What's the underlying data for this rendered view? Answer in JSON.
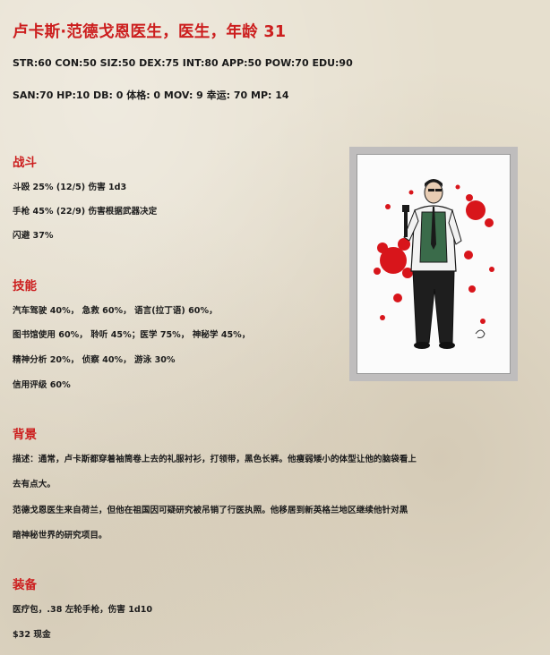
{
  "title": "卢卡斯·范德戈恩医生，医生，年龄 31",
  "stats_line1": "STR:60 CON:50 SIZ:50 DEX:75 INT:80 APP:50 POW:70 EDU:90",
  "stats_line2": "SAN:70 HP:10 DB: 0  体格: 0 MOV: 9    幸运: 70 MP: 14",
  "combat": {
    "heading": "战斗",
    "lines": [
      "斗殴  25% (12/5)  伤害  1d3",
      "手枪  45% (22/9)  伤害根据武器决定",
      "闪避  37%"
    ]
  },
  "skills": {
    "heading": "技能",
    "lines": [
      "汽车驾驶  40%，  急救  60%，  语言(拉丁语) 60%，",
      "图书馆使用  60%，  聆听  45%；医学  75%，  神秘学  45%，",
      "精神分析  20%，  侦察  40%，  游泳  30%",
      "信用评级  60%"
    ]
  },
  "background": {
    "heading": "背景",
    "lines": [
      "描述：通常，卢卡斯都穿着袖筒卷上去的礼服衬衫，打领带，黑色长裤。他瘦弱矮小的体型让他的脑袋看上",
      "去有点大。",
      "范德戈恩医生来自荷兰，但他在祖国因可疑研究被吊销了行医执照。他移居到新英格兰地区继续他针对黑",
      "暗神秘世界的研究项目。"
    ]
  },
  "equipment": {
    "heading": "装备",
    "lines": [
      "医疗包，.38  左轮手枪，伤害  1d10",
      "$32  现金"
    ]
  },
  "portrait": {
    "icon": "doctor-with-revolver-illustration",
    "accent_color": "#d8151b"
  },
  "colors": {
    "heading": "#cc1e1e",
    "text": "#1c1c1c",
    "background": "#e6dfce"
  }
}
